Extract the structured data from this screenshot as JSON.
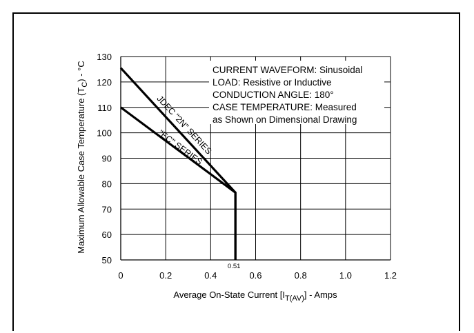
{
  "chart_data": {
    "type": "line",
    "xlabel": "Average On-State Current [I",
    "xlabel_sub": "T(AV)",
    "xlabel_suffix": "] - Amps",
    "ylabel": "Maximum Allowable Case Temperature (T",
    "ylabel_sub": "C",
    "ylabel_suffix": ") - °C",
    "xlim": [
      0,
      1.2
    ],
    "ylim": [
      50,
      130
    ],
    "x_ticks": [
      0,
      0.2,
      0.4,
      0.6,
      0.8,
      1.0,
      1.2
    ],
    "x_tick_labels": [
      "0",
      "0.2",
      "0.4",
      "0.6",
      "0.8",
      "1.0",
      "1.2"
    ],
    "y_ticks": [
      50,
      60,
      70,
      80,
      90,
      100,
      110,
      120,
      130
    ],
    "y_tick_labels": [
      "50",
      "60",
      "70",
      "80",
      "90",
      "100",
      "110",
      "120",
      "130"
    ],
    "grid": true,
    "series": [
      {
        "name": "JDEC \"2N\" SERIES",
        "x": [
          0,
          0.51,
          0.51
        ],
        "y": [
          125.5,
          76.5,
          50
        ]
      },
      {
        "name": "\"EC\" SERIES",
        "x": [
          0,
          0.51,
          0.51
        ],
        "y": [
          110,
          76.5,
          50
        ]
      }
    ],
    "annotations": {
      "marker_label": "0.51",
      "marker_x": 0.51,
      "notes": [
        "CURRENT WAVEFORM: Sinusoidal",
        "LOAD: Resistive or Inductive",
        "CONDUCTION ANGLE: 180°",
        "CASE TEMPERATURE: Measured",
        "as Shown on Dimensional Drawing"
      ]
    }
  }
}
